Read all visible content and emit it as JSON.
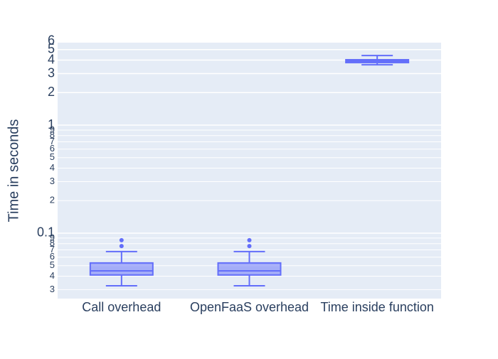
{
  "chart_data": {
    "type": "box",
    "y_label": "Time in seconds",
    "categories": [
      "Call overhead",
      "OpenFaaS overhead",
      "Time inside function"
    ],
    "boxes": [
      {
        "min": 0.0326,
        "q1": 0.041,
        "median": 0.0448,
        "q3": 0.053,
        "max": 0.0675,
        "outliers": [
          0.076,
          0.086
        ]
      },
      {
        "min": 0.0326,
        "q1": 0.041,
        "median": 0.0448,
        "q3": 0.053,
        "max": 0.0675,
        "outliers": [
          0.076,
          0.086
        ]
      },
      {
        "min": 3.62,
        "q1": 3.79,
        "median": 3.91,
        "q3": 4.03,
        "max": 4.41,
        "outliers": []
      }
    ],
    "color": "#636efa",
    "log_y": true,
    "grid": true,
    "ylim": [
      0.0248,
      5.8
    ],
    "yticks": [
      {
        "value": 0.03,
        "label": "3"
      },
      {
        "value": 0.04,
        "label": "4"
      },
      {
        "value": 0.05,
        "label": "5"
      },
      {
        "value": 0.06,
        "label": "6"
      },
      {
        "value": 0.07,
        "label": "7"
      },
      {
        "value": 0.08,
        "label": "8"
      },
      {
        "value": 0.09,
        "label": "9"
      },
      0.1,
      {
        "value": 0.2,
        "label": "2"
      },
      {
        "value": 0.3,
        "label": "3"
      },
      {
        "value": 0.4,
        "label": "4"
      },
      {
        "value": 0.5,
        "label": "5"
      },
      {
        "value": 0.6,
        "label": "6"
      },
      {
        "value": 0.7,
        "label": "7"
      },
      {
        "value": 0.8,
        "label": "8"
      },
      {
        "value": 0.9,
        "label": "9"
      },
      1,
      2,
      3,
      4,
      5,
      6
    ]
  }
}
